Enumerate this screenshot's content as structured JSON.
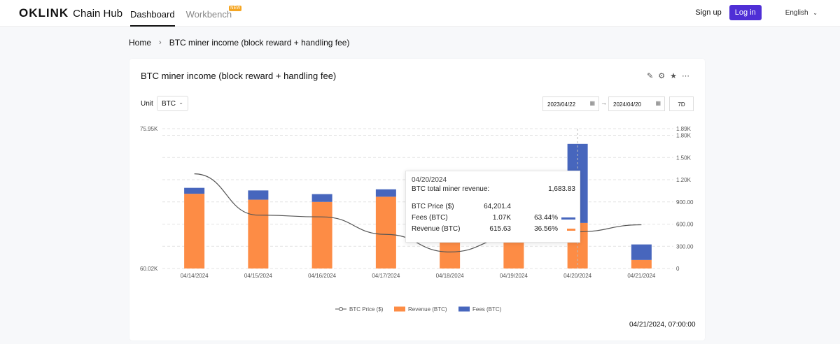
{
  "header": {
    "brand": "OKLINK",
    "product": "Chain Hub",
    "nav": [
      {
        "label": "Dashboard",
        "active": true
      },
      {
        "label": "Workbench",
        "badge": "NEW"
      }
    ],
    "sign_up": "Sign up",
    "log_in": "Log in",
    "language": "English"
  },
  "breadcrumb": {
    "home": "Home",
    "current": "BTC miner income (block reward + handling fee)"
  },
  "card": {
    "title": "BTC miner income (block reward + handling fee)",
    "tools": [
      "edit-icon",
      "settings-icon",
      "star-icon",
      "more-icon"
    ],
    "unit_label": "Unit",
    "unit_value": "BTC",
    "date_from": "2023/04/22",
    "date_to": "2024/04/20",
    "range": "7D",
    "timestamp": "04/21/2024, 07:00:00"
  },
  "tooltip": {
    "date": "04/20/2024",
    "total_label": "BTC total miner revenue:",
    "total_value": "1,683.83",
    "rows": [
      {
        "label": "BTC Price ($)",
        "value": "64,201.4",
        "pct": ""
      },
      {
        "label": "Fees (BTC)",
        "value": "1.07K",
        "pct": "63.44%"
      },
      {
        "label": "Revenue (BTC)",
        "value": "615.63",
        "pct": "36.56%"
      }
    ]
  },
  "colors": {
    "revenue": "#fd8c45",
    "fees": "#4766bd",
    "price": "#555555",
    "accent": "#4f2fd6"
  },
  "chart_data": {
    "type": "bar",
    "categories": [
      "04/14/2024",
      "04/15/2024",
      "04/16/2024",
      "04/17/2024",
      "04/18/2024",
      "04/19/2024",
      "04/20/2024",
      "04/21/2024"
    ],
    "series": [
      {
        "name": "Revenue (BTC)",
        "values": [
          1010,
          930,
          900,
          970,
          880,
          870,
          615.63,
          115
        ]
      },
      {
        "name": "Fees (BTC)",
        "values": [
          80,
          125,
          105,
          100,
          100,
          100,
          1068.2,
          210
        ]
      },
      {
        "name": "BTC Price ($)",
        "values": [
          70800,
          66100,
          65900,
          63900,
          61900,
          63600,
          64201.4,
          65000
        ],
        "axis": "left",
        "type": "line"
      }
    ],
    "left_axis": {
      "ticks": [
        "60.02K",
        "75.95K"
      ],
      "min": 60020,
      "max": 75950
    },
    "right_axis": {
      "ticks": [
        "0",
        "300.00",
        "600.00",
        "900.00",
        "1.20K",
        "1.50K",
        "1.80K",
        "1.89K"
      ],
      "min": 0,
      "max": 1890
    },
    "legend": [
      "BTC Price ($)",
      "Revenue (BTC)",
      "Fees (BTC)"
    ],
    "legend_position": "bottom",
    "grid": true
  }
}
